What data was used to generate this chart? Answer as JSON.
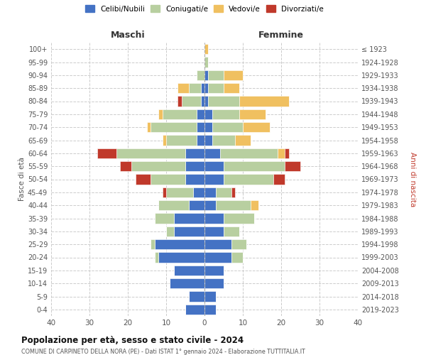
{
  "age_groups": [
    "0-4",
    "5-9",
    "10-14",
    "15-19",
    "20-24",
    "25-29",
    "30-34",
    "35-39",
    "40-44",
    "45-49",
    "50-54",
    "55-59",
    "60-64",
    "65-69",
    "70-74",
    "75-79",
    "80-84",
    "85-89",
    "90-94",
    "95-99",
    "100+"
  ],
  "birth_years": [
    "2019-2023",
    "2014-2018",
    "2009-2013",
    "2004-2008",
    "1999-2003",
    "1994-1998",
    "1989-1993",
    "1984-1988",
    "1979-1983",
    "1974-1978",
    "1969-1973",
    "1964-1968",
    "1959-1963",
    "1954-1958",
    "1949-1953",
    "1944-1948",
    "1939-1943",
    "1934-1938",
    "1929-1933",
    "1924-1928",
    "≤ 1923"
  ],
  "colors": {
    "celibi": "#4472c4",
    "coniugati": "#b8cfa0",
    "vedovi": "#f0c060",
    "divorziati": "#c0392b"
  },
  "males": {
    "celibi": [
      5,
      4,
      9,
      8,
      12,
      13,
      8,
      8,
      4,
      3,
      5,
      5,
      5,
      2,
      2,
      2,
      1,
      1,
      0,
      0,
      0
    ],
    "coniugati": [
      0,
      0,
      0,
      0,
      1,
      1,
      2,
      5,
      8,
      7,
      9,
      14,
      18,
      8,
      12,
      9,
      5,
      3,
      2,
      0,
      0
    ],
    "vedovi": [
      0,
      0,
      0,
      0,
      0,
      0,
      0,
      0,
      0,
      0,
      0,
      0,
      0,
      1,
      1,
      1,
      0,
      3,
      0,
      0,
      0
    ],
    "divorziati": [
      0,
      0,
      0,
      0,
      0,
      0,
      0,
      0,
      0,
      1,
      4,
      3,
      5,
      0,
      0,
      0,
      1,
      0,
      0,
      0,
      0
    ]
  },
  "females": {
    "nubili": [
      3,
      3,
      5,
      5,
      7,
      7,
      5,
      5,
      3,
      3,
      5,
      5,
      4,
      2,
      2,
      2,
      1,
      1,
      1,
      0,
      0
    ],
    "coniugati": [
      0,
      0,
      0,
      0,
      3,
      4,
      4,
      8,
      9,
      4,
      13,
      16,
      15,
      6,
      8,
      7,
      8,
      4,
      4,
      1,
      0
    ],
    "vedovi": [
      0,
      0,
      0,
      0,
      0,
      0,
      0,
      0,
      2,
      0,
      0,
      0,
      2,
      4,
      7,
      7,
      13,
      4,
      5,
      0,
      1
    ],
    "divorziati": [
      0,
      0,
      0,
      0,
      0,
      0,
      0,
      0,
      0,
      1,
      3,
      4,
      1,
      0,
      0,
      0,
      0,
      0,
      0,
      0,
      0
    ]
  },
  "xlim": 40,
  "title": "Popolazione per età, sesso e stato civile - 2024",
  "subtitle": "COMUNE DI CARPINETO DELLA NORA (PE) - Dati ISTAT 1° gennaio 2024 - Elaborazione TUTTITALIA.IT",
  "ylabel_left": "Fasce di età",
  "ylabel_right": "Anni di nascita",
  "xlabel_left": "Maschi",
  "xlabel_right": "Femmine"
}
